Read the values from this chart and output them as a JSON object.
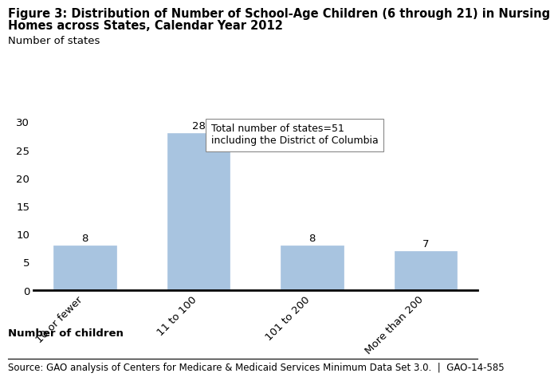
{
  "title_line1": "Figure 3: Distribution of Number of School-Age Children (6 through 21) in Nursing",
  "title_line2": "Homes across States, Calendar Year 2012",
  "categories": [
    "10 or fewer",
    "11 to 100",
    "101 to 200",
    "More than 200"
  ],
  "values": [
    8,
    28,
    8,
    7
  ],
  "bar_color": "#a8c4e0",
  "bar_edgecolor": "#a8c4e0",
  "ylabel": "Number of states",
  "xlabel": "Number of children",
  "ylim": [
    0,
    30
  ],
  "yticks": [
    0,
    5,
    10,
    15,
    20,
    25,
    30
  ],
  "annotation_text": "Total number of states=51\nincluding the District of Columbia",
  "source_text": "Source: GAO analysis of Centers for Medicare & Medicaid Services Minimum Data Set 3.0.  |  GAO-14-585",
  "title_fontsize": 10.5,
  "label_fontsize": 9.5,
  "tick_fontsize": 9.5,
  "value_label_fontsize": 9.5,
  "source_fontsize": 8.5,
  "background_color": "#ffffff"
}
